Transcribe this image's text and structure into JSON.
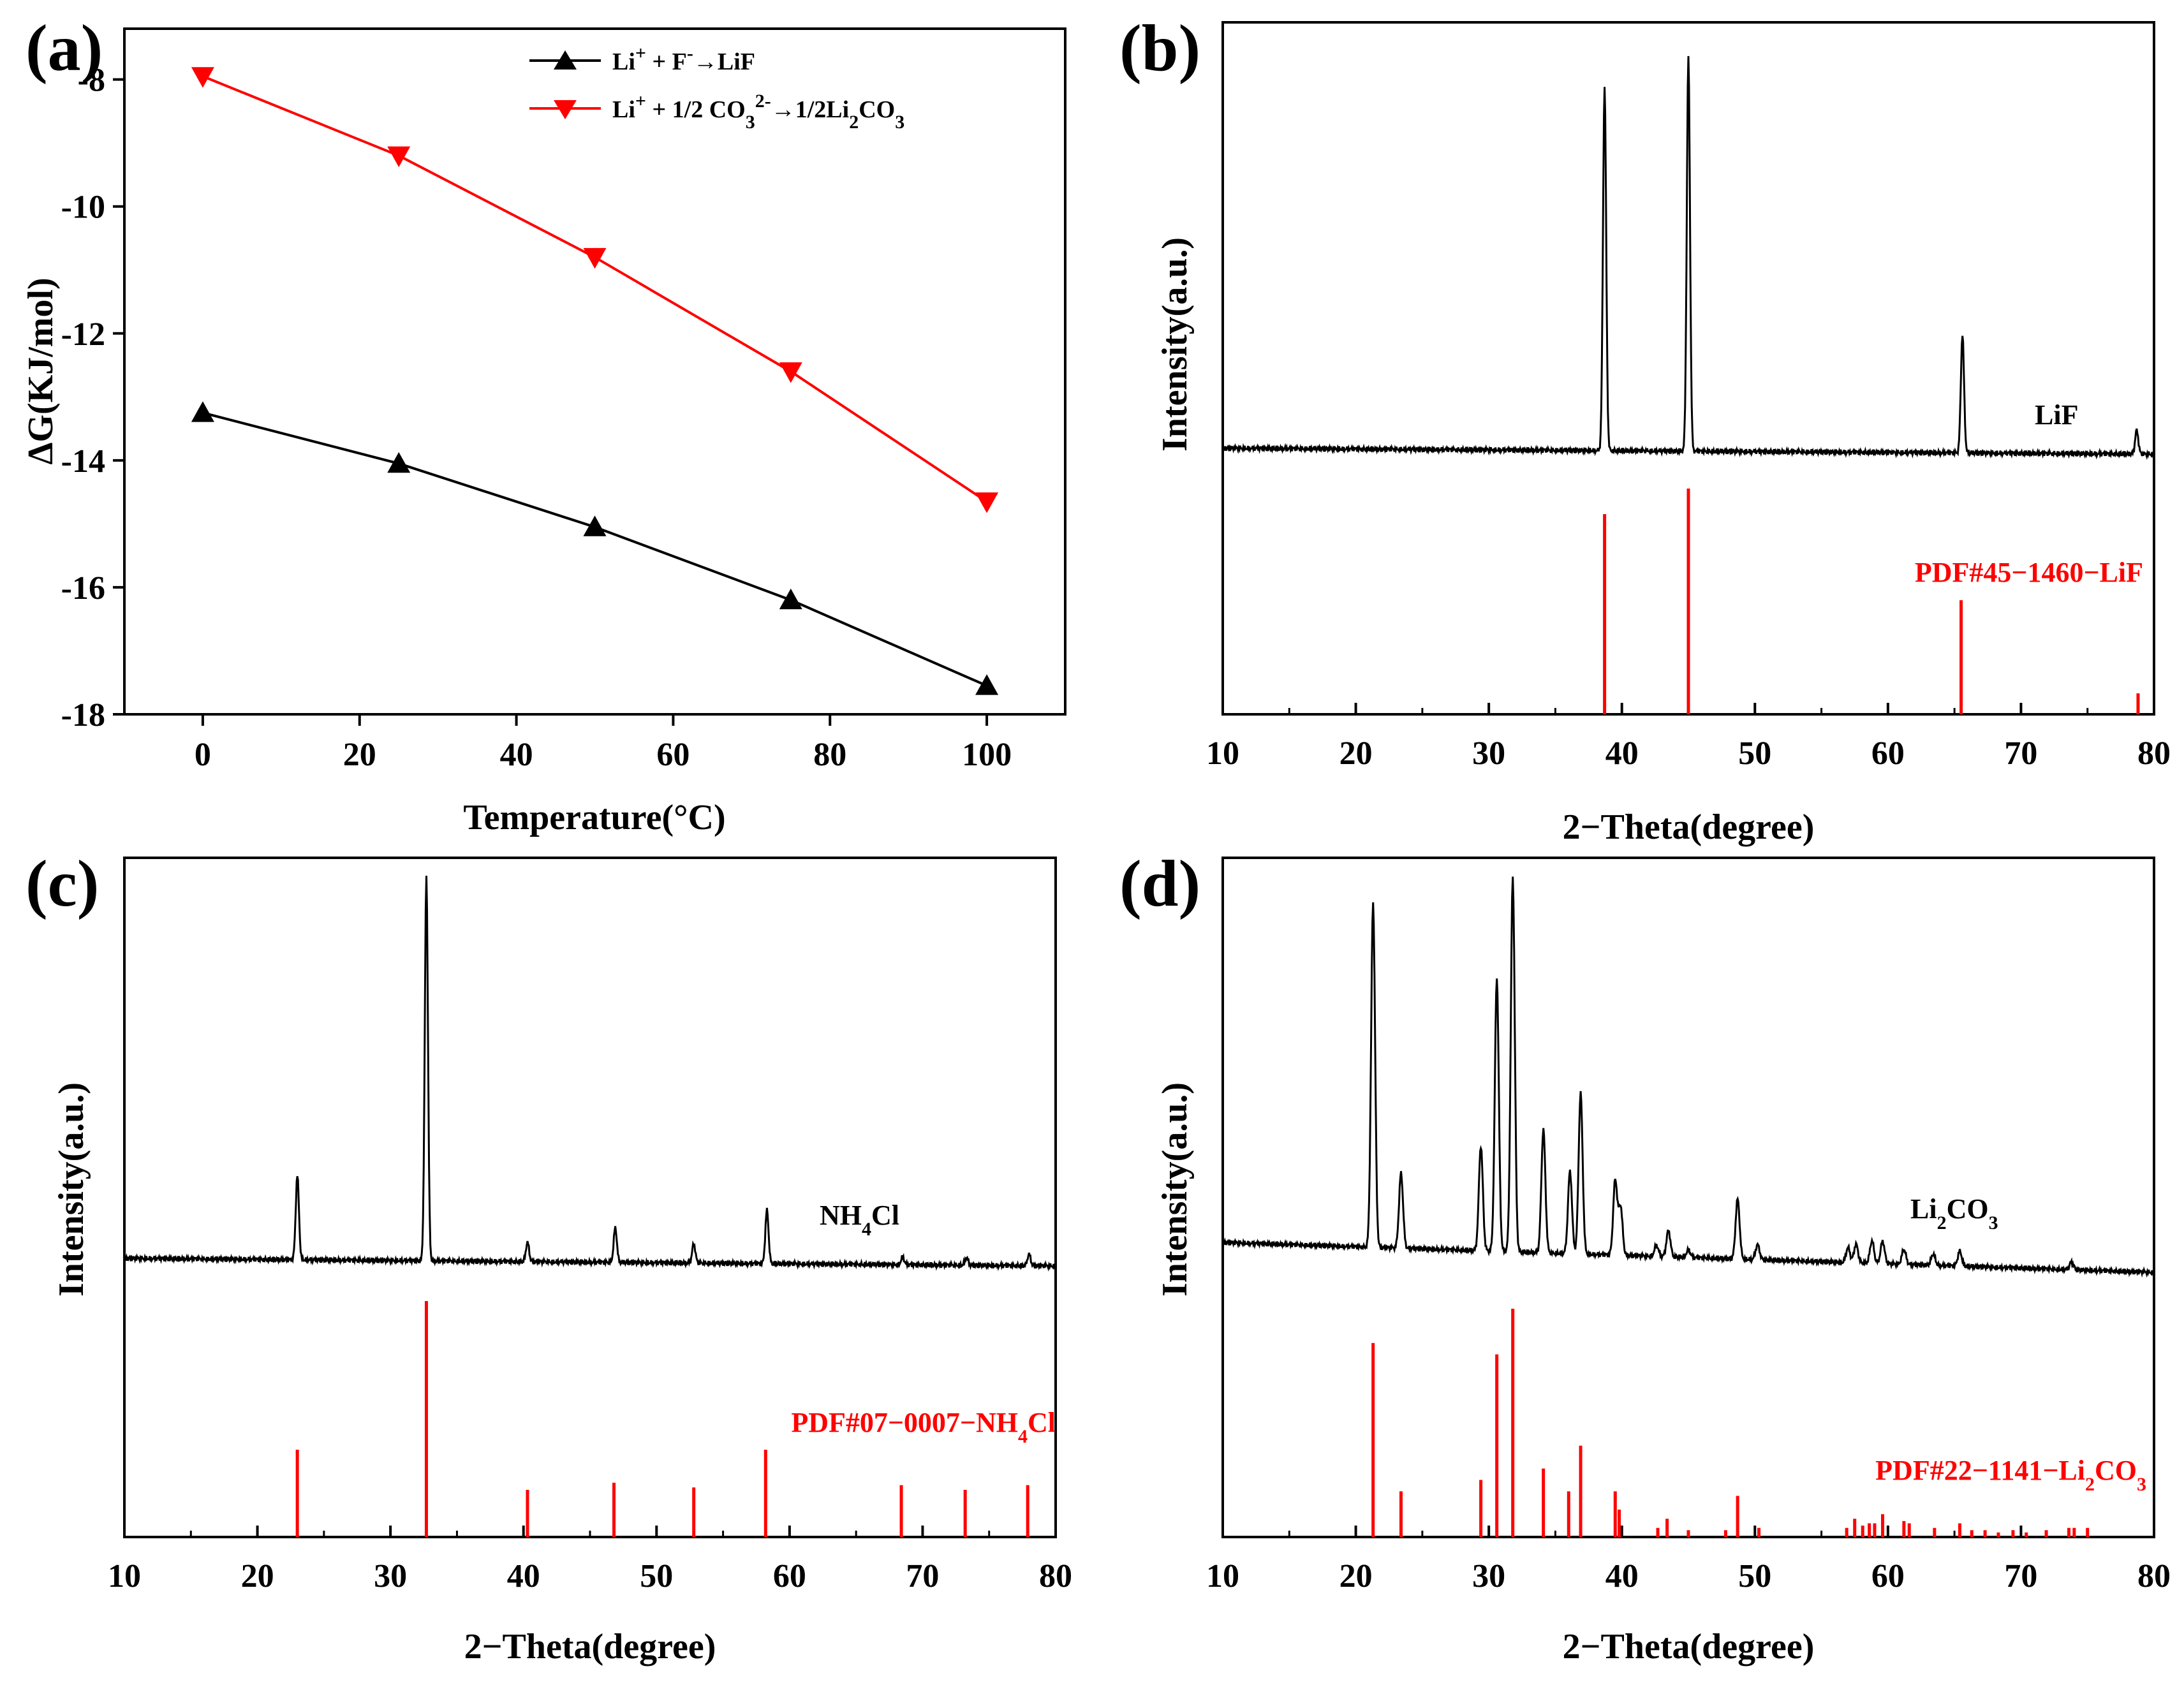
{
  "chart_data": [
    {
      "id": "a",
      "panel_label": "(a)",
      "type": "line",
      "xlabel": "Temperature(°C)",
      "ylabel": "ΔG(KJ/mol)",
      "xlim": [
        -10,
        110
      ],
      "ylim": [
        -18,
        -7.2
      ],
      "xticks": [
        0,
        20,
        40,
        60,
        80,
        100
      ],
      "yticks": [
        -18,
        -16,
        -14,
        -12,
        -10,
        -8
      ],
      "x": [
        0,
        25,
        50,
        75,
        100
      ],
      "series": [
        {
          "name": "Li+ + F- → LiF",
          "legend_parts": [
            "Li",
            "+",
            " + F",
            "-",
            "→LiF"
          ],
          "color": "#000000",
          "marker": "triangle-up",
          "values": [
            -13.25,
            -14.05,
            -15.05,
            -16.2,
            -17.55
          ]
        },
        {
          "name": "Li+ + 1/2 CO3 2- → 1/2Li2CO3",
          "legend_parts": [
            "Li",
            "+",
            " + 1/2 CO",
            "3",
            "2-",
            "→1/2Li",
            "2",
            "CO",
            "3"
          ],
          "color": "#ff0000",
          "marker": "triangle-down",
          "values": [
            -7.95,
            -9.2,
            -10.8,
            -12.6,
            -14.65
          ]
        }
      ],
      "legend_position": "top-center"
    },
    {
      "id": "b",
      "panel_label": "(b)",
      "type": "line",
      "xlabel": "2−Theta(degree)",
      "ylabel": "Intensity(a.u.)",
      "xlim": [
        10,
        80
      ],
      "xticks": [
        10,
        20,
        30,
        40,
        50,
        60,
        70,
        80
      ],
      "baseline_start": 0.015,
      "baseline_end": 0.0,
      "peak_width": 0.12,
      "measured_peaks": [
        {
          "x": 38.7,
          "h": 0.925
        },
        {
          "x": 45.0,
          "h": 1.0
        },
        {
          "x": 65.6,
          "h": 0.3
        },
        {
          "x": 78.7,
          "h": 0.06
        }
      ],
      "reference_lines": [
        {
          "x": 38.7,
          "h": 0.86
        },
        {
          "x": 45.0,
          "h": 0.97
        },
        {
          "x": 65.5,
          "h": 0.49
        },
        {
          "x": 78.8,
          "h": 0.09
        }
      ],
      "sample_label": [
        "LiF"
      ],
      "reference_label": [
        "PDF#45−1460−LiF"
      ]
    },
    {
      "id": "c",
      "panel_label": "(c)",
      "type": "line",
      "xlabel": "2−Theta(degree)",
      "ylabel": "Intensity(a.u.)",
      "xlim": [
        10,
        80
      ],
      "xticks": [
        10,
        20,
        30,
        40,
        50,
        60,
        70,
        80
      ],
      "baseline_start": 0.02,
      "baseline_end": 0.0,
      "peak_width": 0.12,
      "measured_peaks": [
        {
          "x": 23.0,
          "h": 0.22
        },
        {
          "x": 32.7,
          "h": 1.0
        },
        {
          "x": 40.3,
          "h": 0.05
        },
        {
          "x": 46.9,
          "h": 0.09
        },
        {
          "x": 52.8,
          "h": 0.05
        },
        {
          "x": 58.3,
          "h": 0.14
        },
        {
          "x": 68.5,
          "h": 0.02
        },
        {
          "x": 73.3,
          "h": 0.02
        },
        {
          "x": 78.0,
          "h": 0.03
        }
      ],
      "reference_lines": [
        {
          "x": 23.0,
          "h": 0.37
        },
        {
          "x": 32.7,
          "h": 1.0
        },
        {
          "x": 40.3,
          "h": 0.2
        },
        {
          "x": 46.8,
          "h": 0.23
        },
        {
          "x": 52.8,
          "h": 0.21
        },
        {
          "x": 58.2,
          "h": 0.37
        },
        {
          "x": 68.4,
          "h": 0.22
        },
        {
          "x": 73.2,
          "h": 0.2
        },
        {
          "x": 77.9,
          "h": 0.22
        }
      ],
      "sample_label": [
        "NH",
        "4",
        "Cl"
      ],
      "reference_label": [
        "PDF#07−0007−NH",
        "4",
        "Cl"
      ]
    },
    {
      "id": "d",
      "panel_label": "(d)",
      "type": "line",
      "xlabel": "2−Theta(degree)",
      "ylabel": "Intensity(a.u.)",
      "xlim": [
        10,
        80
      ],
      "xticks": [
        10,
        20,
        30,
        40,
        50,
        60,
        70,
        80
      ],
      "baseline_start": 0.08,
      "baseline_end": 0.0,
      "peak_width": 0.15,
      "measured_peaks": [
        {
          "x": 21.3,
          "h": 0.92
        },
        {
          "x": 23.4,
          "h": 0.2
        },
        {
          "x": 29.4,
          "h": 0.28
        },
        {
          "x": 30.6,
          "h": 0.73
        },
        {
          "x": 31.8,
          "h": 1.0
        },
        {
          "x": 34.1,
          "h": 0.33
        },
        {
          "x": 36.1,
          "h": 0.22
        },
        {
          "x": 36.9,
          "h": 0.43
        },
        {
          "x": 39.5,
          "h": 0.2
        },
        {
          "x": 39.9,
          "h": 0.13
        },
        {
          "x": 42.6,
          "h": 0.03
        },
        {
          "x": 43.5,
          "h": 0.07
        },
        {
          "x": 45.0,
          "h": 0.02
        },
        {
          "x": 48.7,
          "h": 0.16
        },
        {
          "x": 50.2,
          "h": 0.04
        },
        {
          "x": 57.0,
          "h": 0.04
        },
        {
          "x": 57.6,
          "h": 0.05
        },
        {
          "x": 58.8,
          "h": 0.06
        },
        {
          "x": 59.6,
          "h": 0.06
        },
        {
          "x": 61.2,
          "h": 0.04
        },
        {
          "x": 63.4,
          "h": 0.03
        },
        {
          "x": 65.4,
          "h": 0.04
        },
        {
          "x": 73.8,
          "h": 0.02
        }
      ],
      "reference_lines": [
        {
          "x": 21.3,
          "h": 0.85
        },
        {
          "x": 23.4,
          "h": 0.2
        },
        {
          "x": 29.4,
          "h": 0.25
        },
        {
          "x": 30.6,
          "h": 0.8
        },
        {
          "x": 31.8,
          "h": 1.0
        },
        {
          "x": 34.1,
          "h": 0.3
        },
        {
          "x": 36.0,
          "h": 0.2
        },
        {
          "x": 36.9,
          "h": 0.4
        },
        {
          "x": 39.5,
          "h": 0.2
        },
        {
          "x": 39.8,
          "h": 0.12
        },
        {
          "x": 42.7,
          "h": 0.04
        },
        {
          "x": 43.4,
          "h": 0.08
        },
        {
          "x": 45.0,
          "h": 0.03
        },
        {
          "x": 47.8,
          "h": 0.03
        },
        {
          "x": 48.7,
          "h": 0.18
        },
        {
          "x": 50.3,
          "h": 0.04
        },
        {
          "x": 56.9,
          "h": 0.04
        },
        {
          "x": 57.5,
          "h": 0.08
        },
        {
          "x": 58.1,
          "h": 0.05
        },
        {
          "x": 58.6,
          "h": 0.06
        },
        {
          "x": 59.0,
          "h": 0.06
        },
        {
          "x": 59.6,
          "h": 0.1
        },
        {
          "x": 61.2,
          "h": 0.07
        },
        {
          "x": 61.6,
          "h": 0.06
        },
        {
          "x": 63.5,
          "h": 0.04
        },
        {
          "x": 65.4,
          "h": 0.06
        },
        {
          "x": 66.3,
          "h": 0.03
        },
        {
          "x": 67.3,
          "h": 0.03
        },
        {
          "x": 68.3,
          "h": 0.02
        },
        {
          "x": 69.4,
          "h": 0.03
        },
        {
          "x": 70.4,
          "h": 0.02
        },
        {
          "x": 71.9,
          "h": 0.03
        },
        {
          "x": 73.6,
          "h": 0.04
        },
        {
          "x": 74.0,
          "h": 0.04
        },
        {
          "x": 75.0,
          "h": 0.04
        }
      ],
      "sample_label": [
        "Li",
        "2",
        "CO",
        "3"
      ],
      "reference_label": [
        "PDF#22−1141−Li",
        "2",
        "CO",
        "3"
      ]
    }
  ],
  "colors": {
    "sample": "#000000",
    "reference": "#ff0000"
  }
}
